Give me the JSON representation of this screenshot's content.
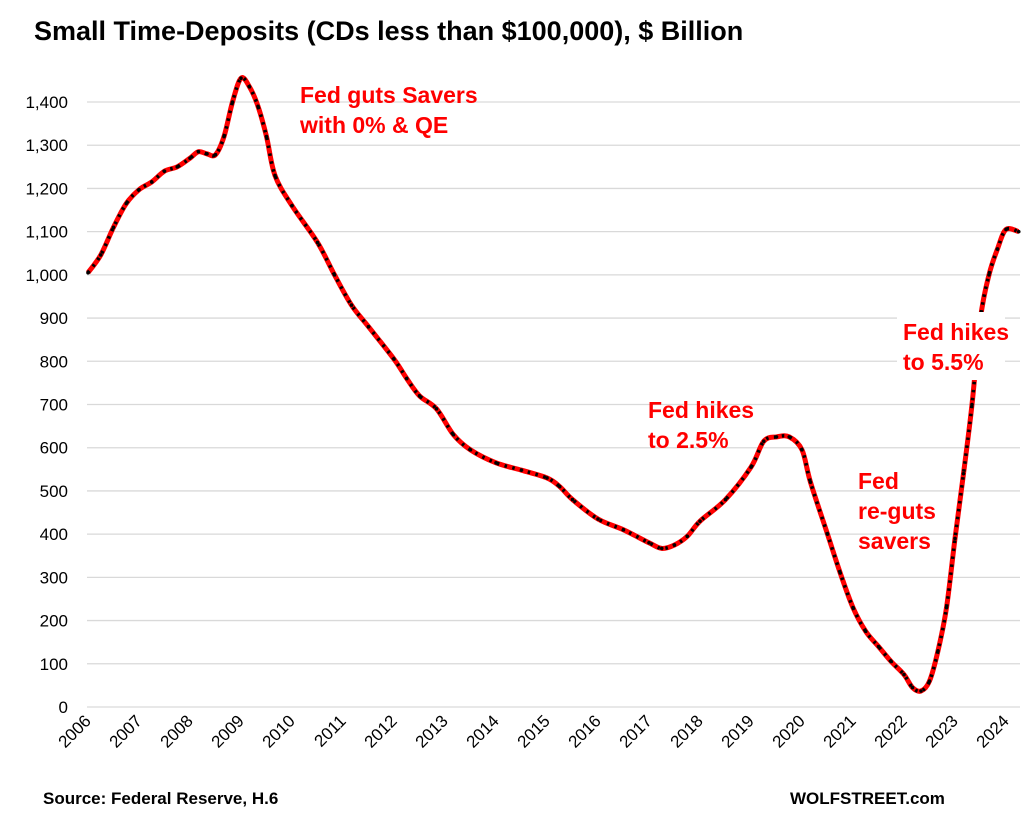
{
  "chart_data": {
    "type": "line",
    "title": "Small Time-Deposits (CDs less than $100,000), $ Billion",
    "xlabel": "",
    "ylabel": "",
    "ylim": [
      0,
      1400
    ],
    "xlim": [
      "2006-01",
      "2024-04"
    ],
    "grid": true,
    "y_ticks": [
      "0",
      "100",
      "200",
      "300",
      "400",
      "500",
      "600",
      "700",
      "800",
      "900",
      "1,000",
      "1,100",
      "1,200",
      "1,300",
      "1,400"
    ],
    "x_ticks": [
      "2006",
      "2007",
      "2008",
      "2009",
      "2010",
      "2011",
      "2012",
      "2013",
      "2014",
      "2015",
      "2016",
      "2017",
      "2018",
      "2019",
      "2020",
      "2021",
      "2022",
      "2023",
      "2024"
    ],
    "line_color": "#ff0000",
    "marker_color": "#000000",
    "points": [
      [
        "2006-01",
        1005
      ],
      [
        "2006-04",
        1046
      ],
      [
        "2006-07",
        1110
      ],
      [
        "2006-10",
        1165
      ],
      [
        "2007-01",
        1197
      ],
      [
        "2007-04",
        1215
      ],
      [
        "2007-07",
        1240
      ],
      [
        "2007-10",
        1250
      ],
      [
        "2008-01",
        1270
      ],
      [
        "2008-03",
        1285
      ],
      [
        "2008-05",
        1280
      ],
      [
        "2008-07",
        1278
      ],
      [
        "2008-09",
        1320
      ],
      [
        "2008-11",
        1400
      ],
      [
        "2009-01",
        1455
      ],
      [
        "2009-03",
        1435
      ],
      [
        "2009-05",
        1390
      ],
      [
        "2009-07",
        1320
      ],
      [
        "2009-09",
        1230
      ],
      [
        "2010-01",
        1160
      ],
      [
        "2010-07",
        1075
      ],
      [
        "2010-11",
        1000
      ],
      [
        "2011-03",
        930
      ],
      [
        "2011-07",
        880
      ],
      [
        "2012-01",
        805
      ],
      [
        "2012-04",
        760
      ],
      [
        "2012-07",
        720
      ],
      [
        "2012-11",
        690
      ],
      [
        "2013-03",
        630
      ],
      [
        "2013-07",
        595
      ],
      [
        "2014-01",
        565
      ],
      [
        "2014-07",
        548
      ],
      [
        "2015-01",
        530
      ],
      [
        "2015-04",
        510
      ],
      [
        "2015-07",
        480
      ],
      [
        "2016-01",
        435
      ],
      [
        "2016-07",
        410
      ],
      [
        "2017-01",
        380
      ],
      [
        "2017-04",
        367
      ],
      [
        "2017-07",
        375
      ],
      [
        "2017-10",
        395
      ],
      [
        "2018-01",
        430
      ],
      [
        "2018-07",
        480
      ],
      [
        "2019-01",
        555
      ],
      [
        "2019-04",
        615
      ],
      [
        "2019-07",
        625
      ],
      [
        "2019-10",
        625
      ],
      [
        "2020-01",
        595
      ],
      [
        "2020-03",
        520
      ],
      [
        "2020-07",
        400
      ],
      [
        "2020-10",
        310
      ],
      [
        "2021-01",
        230
      ],
      [
        "2021-04",
        175
      ],
      [
        "2021-07",
        140
      ],
      [
        "2021-10",
        105
      ],
      [
        "2022-01",
        75
      ],
      [
        "2022-03",
        45
      ],
      [
        "2022-05",
        37
      ],
      [
        "2022-07",
        60
      ],
      [
        "2022-09",
        130
      ],
      [
        "2022-11",
        230
      ],
      [
        "2023-01",
        390
      ],
      [
        "2023-03",
        540
      ],
      [
        "2023-05",
        700
      ],
      [
        "2023-07",
        900
      ],
      [
        "2023-09",
        1000
      ],
      [
        "2023-11",
        1060
      ],
      [
        "2024-01",
        1105
      ],
      [
        "2024-04",
        1100
      ]
    ],
    "annotations": [
      {
        "lines": [
          "Fed guts Savers",
          "with 0% & QE"
        ]
      },
      {
        "lines": [
          "Fed hikes",
          "to 2.5%"
        ]
      },
      {
        "lines": [
          "Fed",
          "re-guts",
          "savers"
        ]
      },
      {
        "lines": [
          "Fed hikes",
          "to 5.5%"
        ]
      }
    ]
  },
  "footer": {
    "source": "Source: Federal Reserve, H.6",
    "credit": "WOLFSTREET.com"
  }
}
